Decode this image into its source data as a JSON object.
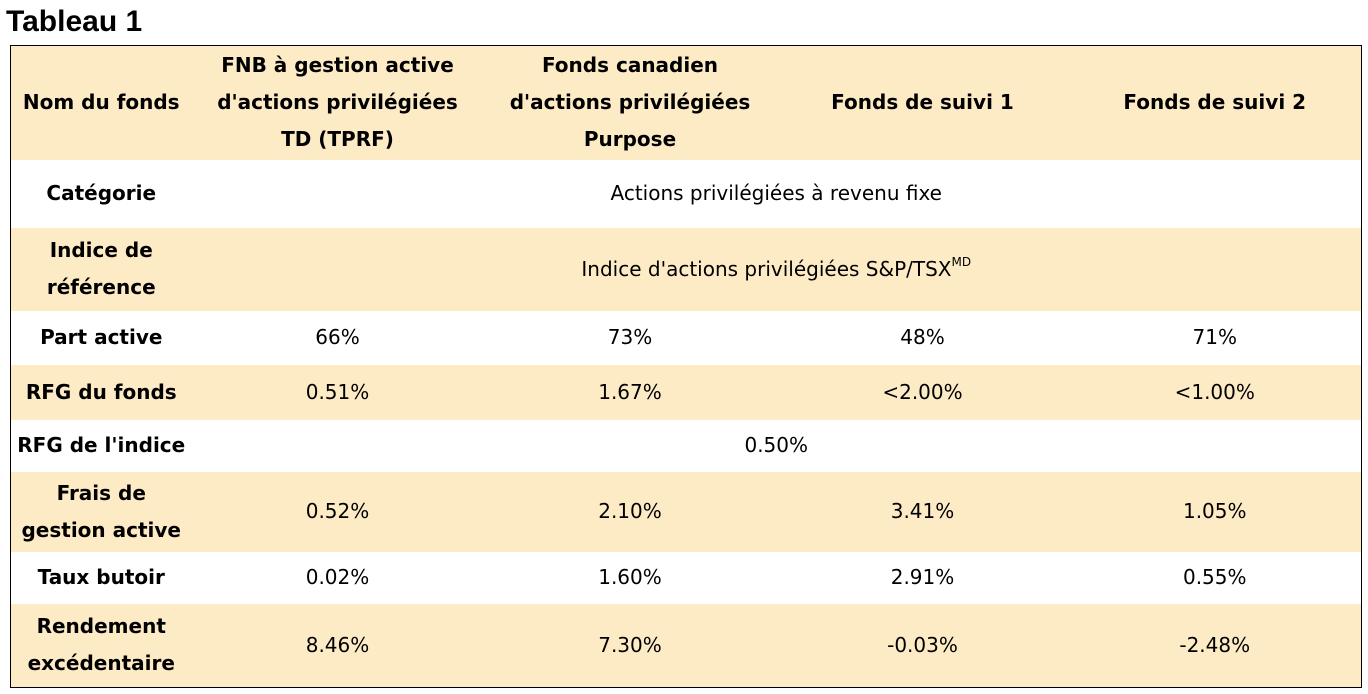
{
  "title": "Tableau 1",
  "header": {
    "col0": "Nom du fonds",
    "col1_l1": "FNB à gestion active",
    "col1_l2": "d'actions privilégiées",
    "col1_l3": "TD (TPRF)",
    "col2_l1": "Fonds canadien",
    "col2_l2": "d'actions privilégiées",
    "col2_l3": "Purpose",
    "col3": "Fonds de suivi 1",
    "col4": "Fonds de suivi 2"
  },
  "rows": {
    "categorie": {
      "label": "Catégorie",
      "value": "Actions privilégiées à revenu fixe"
    },
    "indice": {
      "label_l1": "Indice de",
      "label_l2": "référence",
      "value": "Indice d'actions privilégiées S&P/TSX",
      "sup": "MD"
    },
    "part_active": {
      "label": "Part active",
      "values": [
        "66%",
        "73%",
        "48%",
        "71%"
      ]
    },
    "rfg_fonds": {
      "label": "RFG du fonds",
      "values": [
        "0.51%",
        "1.67%",
        "<2.00%",
        "<1.00%"
      ]
    },
    "rfg_indice": {
      "label": "RFG de l'indice",
      "value": "0.50%"
    },
    "frais": {
      "label_l1": "Frais de",
      "label_l2": "gestion active",
      "values": [
        "0.52%",
        "2.10%",
        "3.41%",
        "1.05%"
      ]
    },
    "taux": {
      "label": "Taux butoir",
      "values": [
        "0.02%",
        "1.60%",
        "2.91%",
        "0.55%"
      ]
    },
    "rendement": {
      "label_l1": "Rendement",
      "label_l2": "excédentaire",
      "values": [
        "8.46%",
        "7.30%",
        "-0.03%",
        "-2.48%"
      ]
    }
  }
}
